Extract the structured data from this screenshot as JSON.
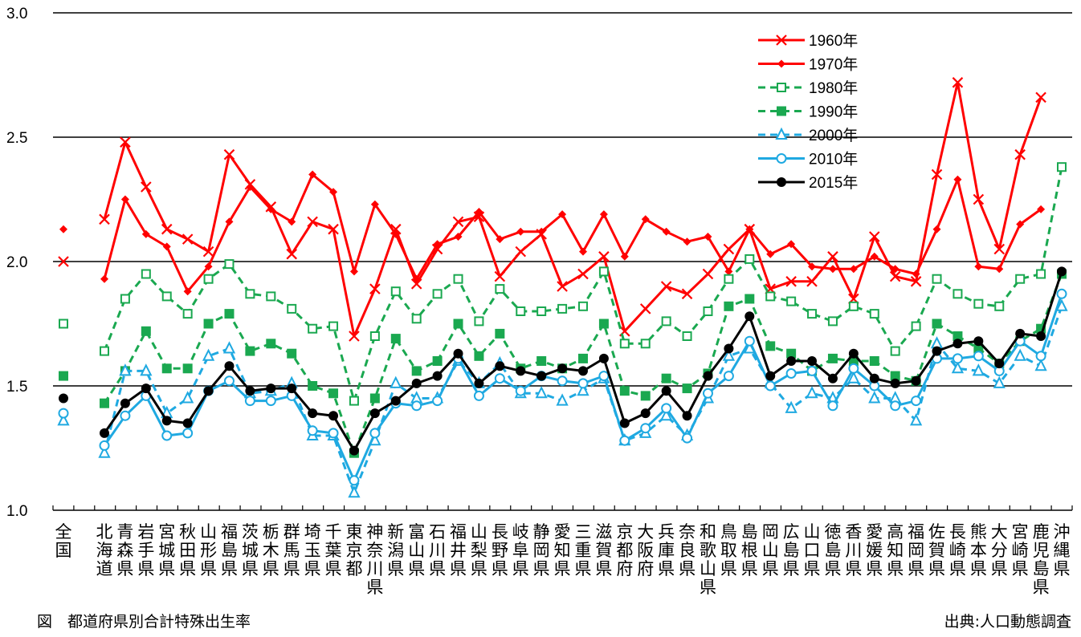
{
  "chart_data": {
    "type": "line",
    "title": "図　都道府県別合計特殊出生率",
    "source": "出典:人口動態調査",
    "xlabel": "",
    "ylabel": "",
    "ylim": [
      1.0,
      3.0
    ],
    "yticks": [
      "1.0",
      "1.5",
      "2.0",
      "2.5",
      "3.0"
    ],
    "grid": "horizontal",
    "legend_position": "top-right",
    "categories": [
      "全国",
      "北海道",
      "青森県",
      "岩手県",
      "宮城県",
      "秋田県",
      "山形県",
      "福島県",
      "茨城県",
      "栃木県",
      "群馬県",
      "埼玉県",
      "千葉県",
      "東京都",
      "神奈川県",
      "新潟県",
      "富山県",
      "石川県",
      "福井県",
      "山梨県",
      "長野県",
      "岐阜県",
      "静岡県",
      "愛知県",
      "三重県",
      "滋賀県",
      "京都府",
      "大阪府",
      "兵庫県",
      "奈良県",
      "和歌山県",
      "鳥取県",
      "島根県",
      "岡山県",
      "広島県",
      "山口県",
      "徳島県",
      "香川県",
      "愛媛県",
      "高知県",
      "福岡県",
      "佐賀県",
      "長崎県",
      "熊本県",
      "大分県",
      "宮崎県",
      "鹿児島県",
      "沖縄県"
    ],
    "series": [
      {
        "name": "1960年",
        "color": "#ff0000",
        "dash": false,
        "marker": "x",
        "values": [
          2.0,
          2.17,
          2.48,
          2.3,
          2.13,
          2.09,
          2.04,
          2.43,
          2.31,
          2.22,
          2.03,
          2.16,
          2.13,
          1.7,
          1.89,
          2.13,
          1.91,
          2.05,
          2.16,
          2.18,
          1.94,
          2.04,
          2.11,
          1.9,
          1.95,
          2.02,
          1.72,
          1.81,
          1.9,
          1.87,
          1.95,
          2.05,
          2.13,
          1.89,
          1.92,
          1.92,
          2.02,
          1.85,
          2.1,
          1.94,
          1.92,
          2.35,
          2.72,
          2.25,
          2.05,
          2.43,
          2.66,
          null
        ]
      },
      {
        "name": "1970年",
        "color": "#ff0000",
        "dash": false,
        "marker": "diamond",
        "values": [
          2.13,
          1.93,
          2.25,
          2.11,
          2.06,
          1.88,
          1.98,
          2.16,
          2.3,
          2.21,
          2.16,
          2.35,
          2.28,
          1.96,
          2.23,
          2.11,
          1.93,
          2.07,
          2.1,
          2.2,
          2.09,
          2.12,
          2.12,
          2.19,
          2.04,
          2.19,
          2.02,
          2.17,
          2.12,
          2.08,
          2.1,
          1.96,
          2.13,
          2.03,
          2.07,
          1.98,
          1.97,
          1.97,
          2.02,
          1.97,
          1.95,
          2.13,
          2.33,
          1.98,
          1.97,
          2.15,
          2.21,
          null
        ]
      },
      {
        "name": "1980年",
        "color": "#1aa850",
        "dash": true,
        "marker": "square-open",
        "values": [
          1.75,
          1.64,
          1.85,
          1.95,
          1.86,
          1.79,
          1.93,
          1.99,
          1.87,
          1.86,
          1.81,
          1.73,
          1.74,
          1.44,
          1.7,
          1.88,
          1.77,
          1.87,
          1.93,
          1.76,
          1.89,
          1.8,
          1.8,
          1.81,
          1.82,
          1.96,
          1.67,
          1.67,
          1.76,
          1.7,
          1.8,
          1.93,
          2.01,
          1.86,
          1.84,
          1.79,
          1.76,
          1.82,
          1.79,
          1.64,
          1.74,
          1.93,
          1.87,
          1.83,
          1.82,
          1.93,
          1.95,
          2.38
        ]
      },
      {
        "name": "1990年",
        "color": "#1aa850",
        "dash": true,
        "marker": "square",
        "values": [
          1.54,
          1.43,
          1.56,
          1.72,
          1.57,
          1.57,
          1.75,
          1.79,
          1.64,
          1.67,
          1.63,
          1.5,
          1.47,
          1.23,
          1.45,
          1.69,
          1.56,
          1.6,
          1.75,
          1.62,
          1.71,
          1.57,
          1.6,
          1.57,
          1.61,
          1.75,
          1.48,
          1.46,
          1.53,
          1.49,
          1.55,
          1.82,
          1.85,
          1.66,
          1.63,
          1.56,
          1.61,
          1.6,
          1.6,
          1.54,
          1.52,
          1.75,
          1.7,
          1.65,
          1.59,
          1.68,
          1.73,
          1.95
        ]
      },
      {
        "name": "2000年",
        "color": "#1fa9e1",
        "dash": true,
        "marker": "triangle-open",
        "values": [
          1.36,
          1.23,
          1.56,
          1.56,
          1.39,
          1.45,
          1.62,
          1.65,
          1.47,
          1.48,
          1.51,
          1.3,
          1.3,
          1.07,
          1.28,
          1.51,
          1.45,
          1.45,
          1.6,
          1.51,
          1.59,
          1.47,
          1.47,
          1.44,
          1.48,
          1.53,
          1.28,
          1.31,
          1.38,
          1.3,
          1.45,
          1.62,
          1.65,
          1.51,
          1.41,
          1.47,
          1.45,
          1.53,
          1.45,
          1.45,
          1.36,
          1.67,
          1.57,
          1.56,
          1.51,
          1.62,
          1.58,
          1.82
        ]
      },
      {
        "name": "2010年",
        "color": "#1fa9e1",
        "dash": false,
        "marker": "circle-open",
        "values": [
          1.39,
          1.26,
          1.38,
          1.46,
          1.3,
          1.31,
          1.48,
          1.52,
          1.44,
          1.44,
          1.46,
          1.32,
          1.31,
          1.12,
          1.31,
          1.43,
          1.42,
          1.44,
          1.61,
          1.46,
          1.53,
          1.48,
          1.54,
          1.52,
          1.51,
          1.54,
          1.28,
          1.33,
          1.41,
          1.29,
          1.47,
          1.54,
          1.68,
          1.5,
          1.55,
          1.56,
          1.42,
          1.57,
          1.5,
          1.42,
          1.44,
          1.61,
          1.61,
          1.62,
          1.56,
          1.68,
          1.62,
          1.87
        ]
      },
      {
        "name": "2015年",
        "color": "#000000",
        "dash": false,
        "marker": "circle",
        "values": [
          1.45,
          1.31,
          1.43,
          1.49,
          1.36,
          1.35,
          1.48,
          1.58,
          1.48,
          1.49,
          1.49,
          1.39,
          1.38,
          1.24,
          1.39,
          1.44,
          1.51,
          1.54,
          1.63,
          1.51,
          1.58,
          1.56,
          1.54,
          1.57,
          1.56,
          1.61,
          1.35,
          1.39,
          1.48,
          1.38,
          1.54,
          1.65,
          1.78,
          1.54,
          1.6,
          1.6,
          1.53,
          1.63,
          1.53,
          1.51,
          1.52,
          1.64,
          1.67,
          1.68,
          1.59,
          1.71,
          1.7,
          1.96
        ]
      }
    ]
  },
  "captions": {
    "figure": "図　都道府県別合計特殊出生率",
    "source": "出典:人口動態調査"
  }
}
